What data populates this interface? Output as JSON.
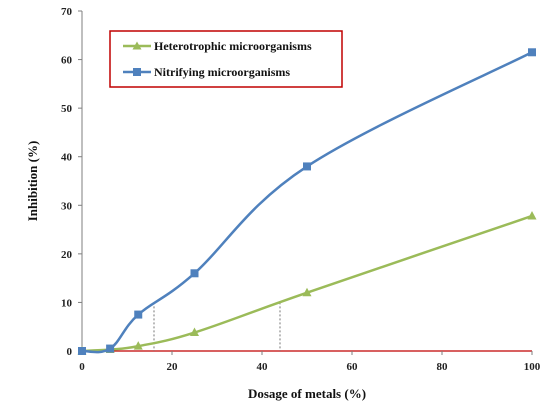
{
  "chart_data": {
    "type": "line",
    "title": "",
    "xlabel": "Dosage of metals (%)",
    "ylabel": "Inhibition (%)",
    "xlim": [
      0,
      100
    ],
    "ylim": [
      0,
      70
    ],
    "xticks": [
      0,
      20,
      40,
      60,
      80,
      100
    ],
    "yticks": [
      0,
      10,
      20,
      30,
      40,
      50,
      60,
      70
    ],
    "grid": false,
    "legend_position": "top-left",
    "series": [
      {
        "name": "Heterotrophic microorganisms",
        "color": "#9bbb59",
        "marker": "triangle",
        "x": [
          0,
          6.25,
          12.5,
          25,
          50,
          100
        ],
        "y": [
          0,
          0.3,
          1.0,
          3.8,
          12.0,
          27.8
        ]
      },
      {
        "name": "Nitrifying microorganisms",
        "color": "#4f81bd",
        "marker": "square",
        "x": [
          0,
          6.25,
          12.5,
          25,
          50,
          100
        ],
        "y": [
          0,
          0.5,
          7.5,
          16.0,
          38.0,
          61.5
        ]
      }
    ],
    "reference_lines": [
      {
        "x": 16,
        "y": 10.0
      },
      {
        "x": 44,
        "y": 10.0
      }
    ]
  }
}
